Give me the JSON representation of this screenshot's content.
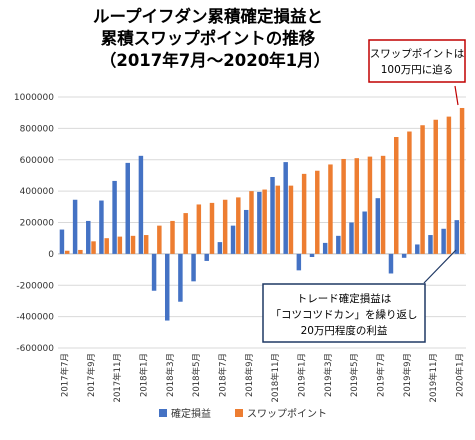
{
  "chart_data": {
    "type": "bar",
    "title_lines": [
      "ループイフダン累積確定損益と",
      "累積スワップポイントの推移",
      "（2017年7月～2020年1月）"
    ],
    "categories": [
      "2017年7月",
      "2017年8月",
      "2017年9月",
      "2017年10月",
      "2017年11月",
      "2017年12月",
      "2018年1月",
      "2018年2月",
      "2018年3月",
      "2018年4月",
      "2018年5月",
      "2018年6月",
      "2018年7月",
      "2018年8月",
      "2018年9月",
      "2018年10月",
      "2018年11月",
      "2018年12月",
      "2019年1月",
      "2019年2月",
      "2019年3月",
      "2019年4月",
      "2019年5月",
      "2019年6月",
      "2019年7月",
      "2019年8月",
      "2019年9月",
      "2019年10月",
      "2019年11月",
      "2019年12月",
      "2020年1月"
    ],
    "tick_labels": [
      "2017年7月",
      "2017年9月",
      "2017年11月",
      "2018年1月",
      "2018年3月",
      "2018年5月",
      "2018年7月",
      "2018年9月",
      "2018年11月",
      "2019年1月",
      "2019年3月",
      "2019年5月",
      "2019年7月",
      "2019年9月",
      "2019年11月",
      "2020年1月"
    ],
    "series": [
      {
        "name": "確定損益",
        "color": "#4472C4",
        "values": [
          155000,
          345000,
          210000,
          340000,
          465000,
          580000,
          625000,
          -235000,
          -425000,
          -305000,
          -175000,
          -45000,
          75000,
          180000,
          280000,
          395000,
          490000,
          585000,
          -105000,
          -20000,
          70000,
          115000,
          200000,
          270000,
          355000,
          -125000,
          -25000,
          60000,
          120000,
          160000,
          215000
        ]
      },
      {
        "name": "スワップポイント",
        "color": "#ED7D31",
        "values": [
          20000,
          25000,
          80000,
          100000,
          110000,
          115000,
          120000,
          180000,
          210000,
          260000,
          315000,
          325000,
          345000,
          360000,
          400000,
          410000,
          435000,
          435000,
          510000,
          530000,
          570000,
          605000,
          610000,
          620000,
          625000,
          745000,
          780000,
          820000,
          855000,
          875000,
          930000
        ]
      }
    ],
    "ylim": [
      -600000,
      1000000
    ],
    "yticks": [
      -600000,
      -400000,
      -200000,
      0,
      200000,
      400000,
      600000,
      800000,
      1000000
    ],
    "ytick_labels": [
      "-600000",
      "-400000",
      "-200000",
      "0",
      "200000",
      "400000",
      "600000",
      "800000",
      "1000000"
    ],
    "grid": true,
    "legend_position": "bottom",
    "annotations": [
      {
        "lines": [
          "スワップポイントは",
          "100万円に迫る"
        ],
        "color": "#C00000"
      },
      {
        "lines": [
          "トレード確定損益は",
          "「コツコツドカン」を繰り返し",
          "20万円程度の利益"
        ],
        "color": "#1F3864"
      }
    ]
  }
}
